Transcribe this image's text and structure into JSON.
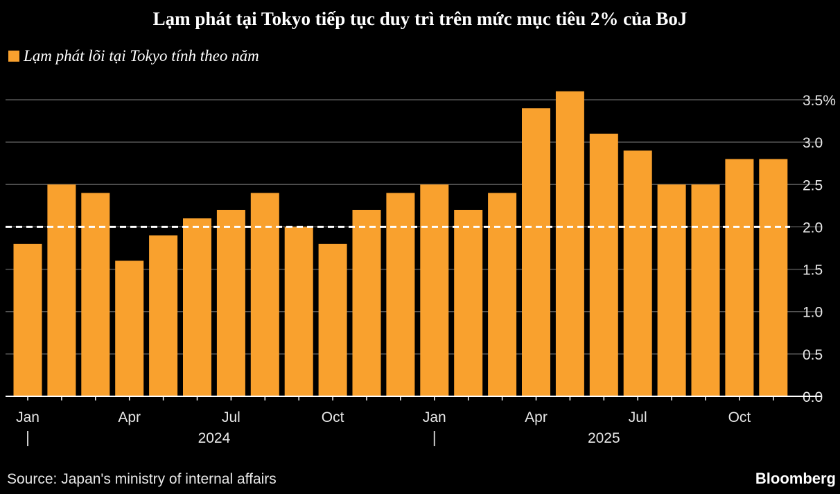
{
  "title": "Lạm phát tại Tokyo tiếp tục duy trì trên mức mục tiêu 2% của BoJ",
  "source": "Source: Japan's ministry of internal affairs",
  "brand": "Bloomberg",
  "colors": {
    "bar": "#f9a12e",
    "background": "#000000",
    "grid": "#555555",
    "target_line": "#ffffff"
  },
  "chart_data": {
    "type": "bar",
    "title": "Lạm phát tại Tokyo tiếp tục duy trì trên mức mục tiêu 2% của BoJ",
    "legend": [
      "Lạm phát lõi tại Tokyo tính theo năm"
    ],
    "legend_placement": "top-left",
    "categories": [
      "2024-01",
      "2024-02",
      "2024-03",
      "2024-04",
      "2024-05",
      "2024-06",
      "2024-07",
      "2024-08",
      "2024-09",
      "2024-10",
      "2024-11",
      "2024-12",
      "2025-01",
      "2025-02",
      "2025-03",
      "2025-04",
      "2025-05",
      "2025-06",
      "2025-07",
      "2025-08",
      "2025-09",
      "2025-10",
      "2025-11"
    ],
    "values": [
      1.8,
      2.5,
      2.4,
      1.6,
      1.9,
      2.1,
      2.2,
      2.4,
      2.0,
      1.8,
      2.2,
      2.4,
      2.5,
      2.2,
      2.4,
      3.4,
      3.6,
      3.1,
      2.9,
      2.5,
      2.5,
      2.8,
      2.8
    ],
    "ylim": [
      0,
      3.5
    ],
    "yticks": [
      "0.0",
      "0.5",
      "1.0",
      "1.5",
      "2.0",
      "2.5",
      "3.0",
      "3.5%"
    ],
    "ytick_values": [
      0,
      0.5,
      1.0,
      1.5,
      2.0,
      2.5,
      3.0,
      3.5
    ],
    "xtick_labels": [
      {
        "label": "Jan",
        "index": 0
      },
      {
        "label": "Apr",
        "index": 3
      },
      {
        "label": "Jul",
        "index": 6
      },
      {
        "label": "Oct",
        "index": 9
      },
      {
        "label": "Jan",
        "index": 12
      },
      {
        "label": "Apr",
        "index": 15
      },
      {
        "label": "Jul",
        "index": 18
      },
      {
        "label": "Oct",
        "index": 21
      }
    ],
    "year_labels": [
      {
        "label": "2024",
        "start": 0,
        "end": 11
      },
      {
        "label": "2025",
        "start": 12,
        "end": 22
      }
    ],
    "target_line": 2.0,
    "grid": true,
    "xlabel": "",
    "ylabel": ""
  }
}
